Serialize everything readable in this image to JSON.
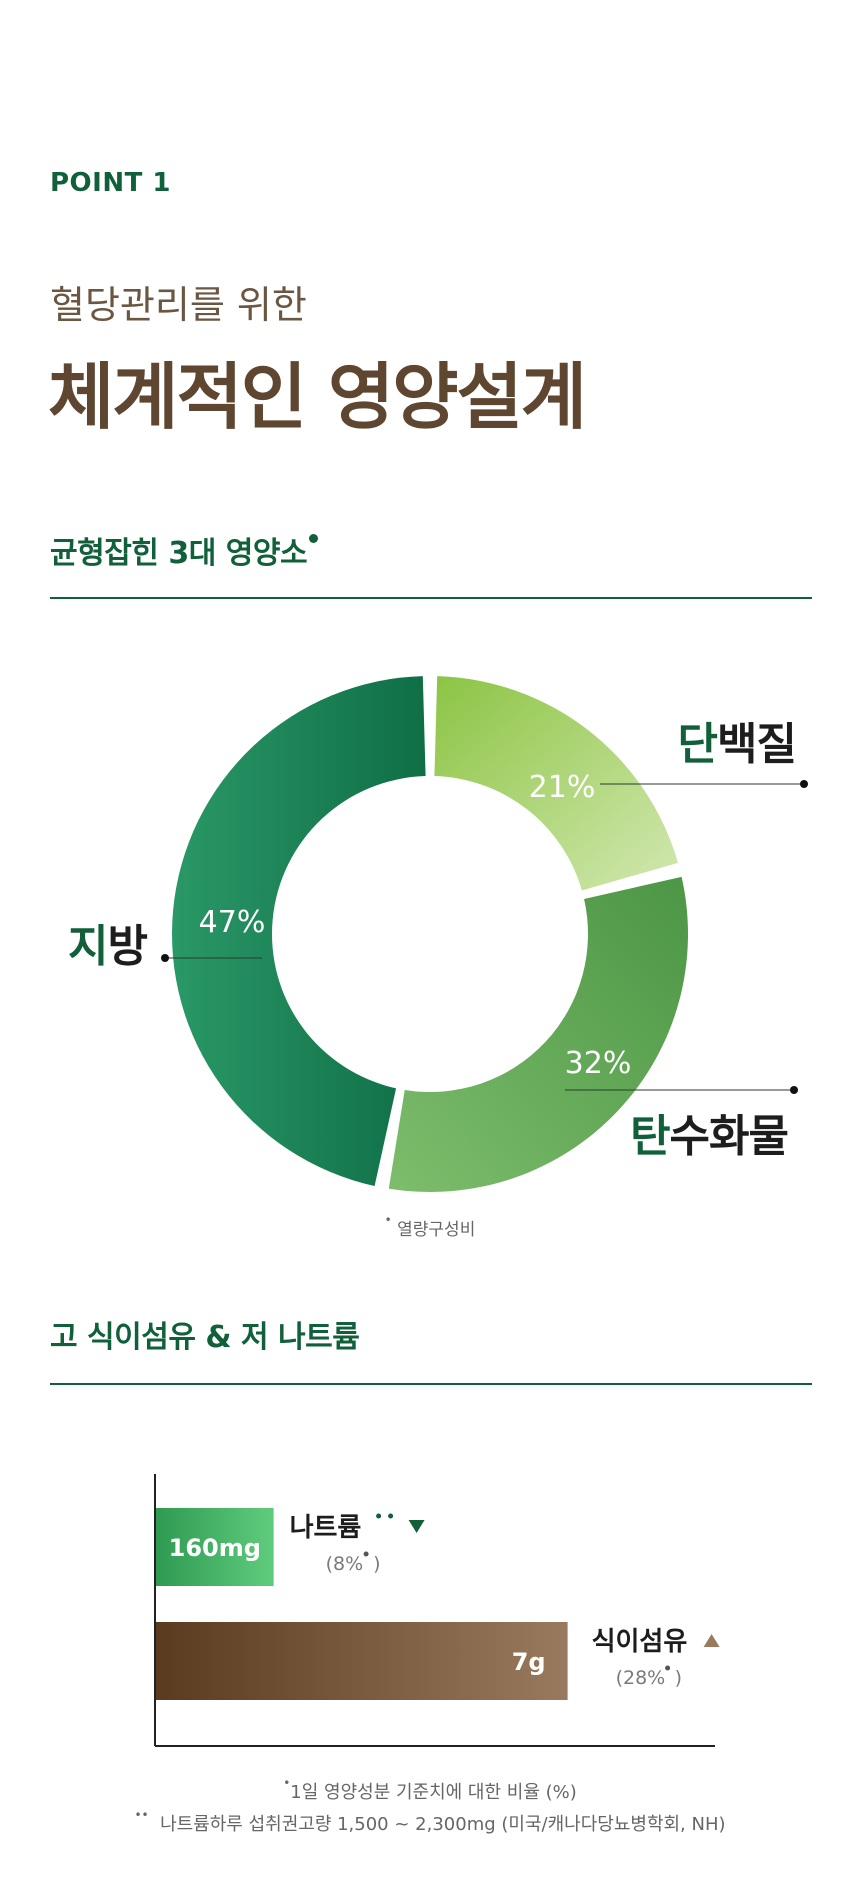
{
  "header": {
    "point": "POINT 1",
    "subtitle": "혈당관리를 위한",
    "title": "체계적인 영양설계"
  },
  "section1": {
    "title": "균형잡힌 3대 영양소"
  },
  "section2": {
    "title": "고 식이섬유 & 저 나트륨"
  },
  "colors": {
    "brand_green": "#11603a",
    "brand_brown": "#5e4630",
    "protein": "#b5d88a",
    "carb": "#5fa85a",
    "fat": "#1b7c52",
    "sodium": "#4cb86b",
    "fiber": "#7a5a3e"
  },
  "chart_data": [
    {
      "type": "pie",
      "categories": [
        "단백질",
        "탄수화물",
        "지방"
      ],
      "values": [
        21,
        32,
        47
      ],
      "value_labels": [
        "21%",
        "32%",
        "47%"
      ],
      "annotation": "열량구성비"
    },
    {
      "type": "bar",
      "orientation": "horizontal",
      "categories": [
        "나트륨",
        "식이섬유"
      ],
      "values": [
        8,
        28
      ],
      "value_unit": "%",
      "amount_labels": [
        "160mg",
        "7g"
      ],
      "percent_labels": [
        "(8%",
        "(28%"
      ],
      "trend": [
        "down",
        "up"
      ]
    }
  ],
  "footnotes": {
    "note1": "1일 영양성분 기준치에 대한 비율 (%)",
    "note2": "나트륨하루 섭취권고량 1,500 ~ 2,300mg (미국/캐나다당뇨병학회, NH)"
  }
}
